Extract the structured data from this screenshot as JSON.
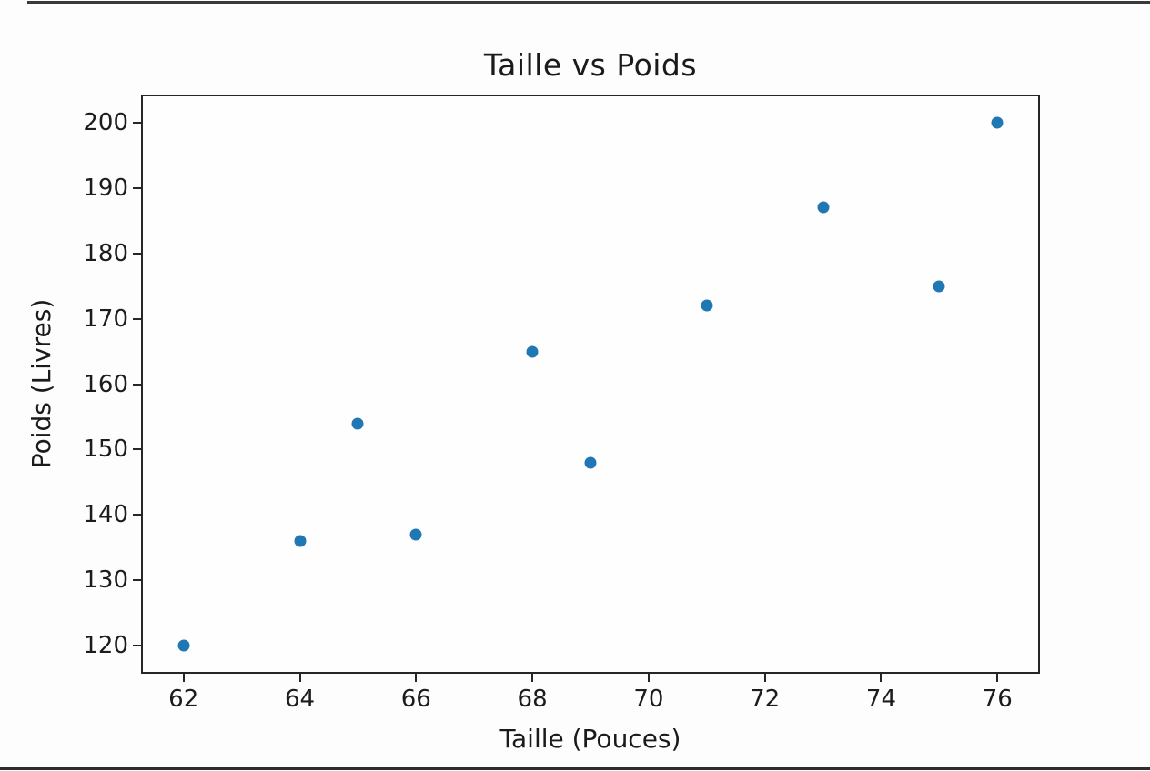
{
  "chart_data": {
    "type": "scatter",
    "title": "Taille vs Poids",
    "xlabel": "Taille (Pouces)",
    "ylabel": "Poids (Livres)",
    "x": [
      62,
      64,
      65,
      66,
      68,
      69,
      71,
      73,
      75,
      76
    ],
    "y": [
      120,
      136,
      154,
      137,
      165,
      148,
      172,
      187,
      175,
      200
    ],
    "x_ticks": [
      62,
      64,
      66,
      68,
      70,
      72,
      74,
      76
    ],
    "y_ticks": [
      120,
      130,
      140,
      150,
      160,
      170,
      180,
      190,
      200
    ],
    "xlim": [
      61.3,
      76.7
    ],
    "ylim": [
      116,
      204
    ],
    "grid": false,
    "legend": false,
    "marker_color": "#1f77b4",
    "axis_color": "#262626",
    "text_color": "#1c1c1c"
  }
}
